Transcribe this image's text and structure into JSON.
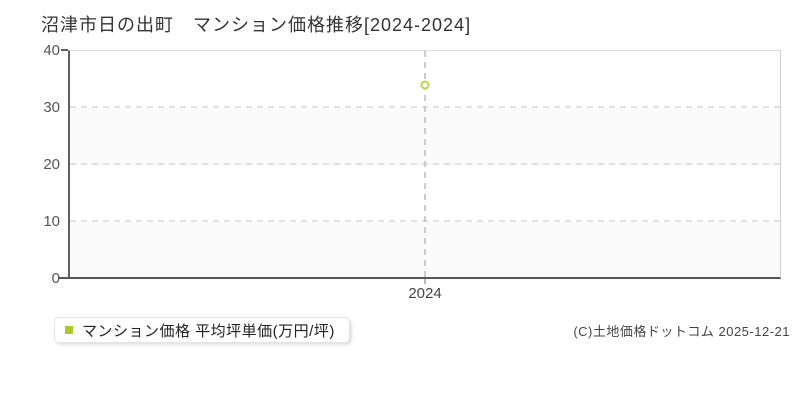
{
  "title": "沼津市日の出町　マンション価格推移[2024-2024]",
  "chart_data": {
    "type": "scatter",
    "title": "沼津市日の出町　マンション価格推移[2024-2024]",
    "categories": [
      "2024"
    ],
    "series": [
      {
        "name": "マンション価格 平均坪単価(万円/坪)",
        "values": [
          34
        ]
      }
    ],
    "xlabel": "",
    "ylabel": "",
    "ylim": [
      0,
      40
    ],
    "yticks": [
      0,
      10,
      20,
      30,
      40
    ],
    "grid": "dashed",
    "legend_position": "bottom-left",
    "marker": {
      "shape": "open-circle",
      "color": "#bcd44e"
    },
    "band_colors": [
      "#ffffff",
      "#fafafa"
    ]
  },
  "axes": {
    "y_labels": [
      "40",
      "30",
      "20",
      "10",
      "0"
    ],
    "x_labels": [
      "2024"
    ]
  },
  "legend": {
    "label": "マンション価格 平均坪単価(万円/坪)",
    "swatch_color": "#a8c92c"
  },
  "footer": {
    "copyright": "(C)土地価格ドットコム 2025-12-21"
  }
}
